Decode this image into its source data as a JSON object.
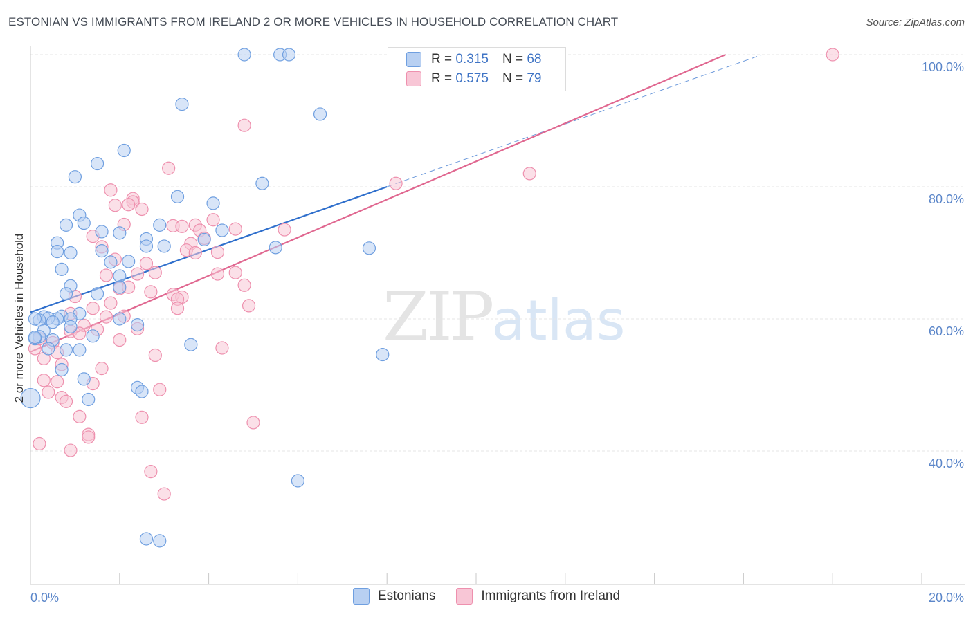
{
  "title": "ESTONIAN VS IMMIGRANTS FROM IRELAND 2 OR MORE VEHICLES IN HOUSEHOLD CORRELATION CHART",
  "source": "Source: ZipAtlas.com",
  "watermark": {
    "zip": "ZIP",
    "atlas": "atlas"
  },
  "legend_top": [
    {
      "r_label": "R =",
      "r_value": "0.315",
      "n_label": "N =",
      "n_value": "68"
    },
    {
      "r_label": "R =",
      "r_value": "0.575",
      "n_label": "N =",
      "n_value": "79"
    }
  ],
  "legend_bottom": [
    "Estonians",
    "Immigrants from Ireland"
  ],
  "colors": {
    "blue_fill": "#b8d0f2",
    "blue_stroke": "#6f9fe0",
    "blue_line": "#2f6fcc",
    "pink_fill": "#f8c6d6",
    "pink_stroke": "#ee90ae",
    "pink_line": "#e06790",
    "grid": "#e6e6e6",
    "tick_label": "#5b86c9"
  },
  "chart_data": {
    "type": "scatter",
    "title": "ESTONIAN VS IMMIGRANTS FROM IRELAND 2 OR MORE VEHICLES IN HOUSEHOLD CORRELATION CHART",
    "xlabel": "",
    "ylabel": "2 or more Vehicles in Household",
    "xlim": [
      0,
      20
    ],
    "ylim": [
      20,
      100
    ],
    "x_tick_labels": [
      "0.0%",
      "20.0%"
    ],
    "y_ticks": [
      40,
      60,
      80,
      100
    ],
    "y_tick_labels": [
      "40.0%",
      "60.0%",
      "80.0%",
      "100.0%"
    ],
    "grid": true,
    "legend_position": "top-center",
    "series": [
      {
        "name": "Estonians",
        "R": 0.315,
        "N": 68,
        "trend": {
          "x": [
            0.0,
            8.0
          ],
          "y": [
            61.0,
            80.0
          ],
          "dashed_extension_to_x": 16.4
        },
        "points": [
          [
            4.8,
            100
          ],
          [
            5.6,
            100
          ],
          [
            5.8,
            100
          ],
          [
            3.4,
            92.5
          ],
          [
            6.5,
            91
          ],
          [
            2.1,
            85.5
          ],
          [
            1.5,
            83.5
          ],
          [
            1.0,
            81.5
          ],
          [
            5.2,
            80.5
          ],
          [
            3.3,
            78.5
          ],
          [
            4.1,
            77.5
          ],
          [
            1.1,
            75.7
          ],
          [
            1.2,
            74.5
          ],
          [
            0.8,
            74.2
          ],
          [
            2.9,
            74.2
          ],
          [
            4.3,
            73.4
          ],
          [
            1.6,
            73.2
          ],
          [
            2.0,
            73.0
          ],
          [
            2.6,
            72.1
          ],
          [
            3.9,
            72.0
          ],
          [
            0.6,
            71.5
          ],
          [
            2.6,
            71.0
          ],
          [
            3.0,
            71.0
          ],
          [
            5.5,
            70.8
          ],
          [
            7.6,
            70.7
          ],
          [
            1.6,
            70.3
          ],
          [
            0.6,
            70.2
          ],
          [
            0.9,
            70.0
          ],
          [
            1.8,
            68.6
          ],
          [
            2.2,
            68.7
          ],
          [
            0.7,
            67.5
          ],
          [
            2.0,
            66.5
          ],
          [
            2.0,
            64.8
          ],
          [
            0.9,
            65.0
          ],
          [
            0.8,
            63.8
          ],
          [
            1.5,
            63.8
          ],
          [
            0.7,
            60.4
          ],
          [
            1.1,
            60.8
          ],
          [
            0.3,
            60.3
          ],
          [
            0.6,
            60.0
          ],
          [
            0.9,
            60.0
          ],
          [
            2.0,
            60.0
          ],
          [
            0.4,
            60.1
          ],
          [
            0.2,
            59.8
          ],
          [
            0.1,
            60.0
          ],
          [
            2.4,
            59.1
          ],
          [
            0.9,
            58.8
          ],
          [
            0.3,
            58.2
          ],
          [
            0.2,
            57.3
          ],
          [
            1.4,
            57.4
          ],
          [
            0.5,
            56.8
          ],
          [
            0.1,
            57.0
          ],
          [
            3.6,
            56.1
          ],
          [
            0.8,
            55.3
          ],
          [
            0.4,
            55.5
          ],
          [
            1.1,
            55.3
          ],
          [
            7.9,
            54.6
          ],
          [
            0.7,
            52.3
          ],
          [
            1.2,
            50.9
          ],
          [
            2.4,
            49.6
          ],
          [
            2.5,
            49.0
          ],
          [
            1.3,
            47.8
          ],
          [
            0.0,
            48.0
          ],
          [
            6.0,
            35.5
          ],
          [
            2.6,
            26.7
          ],
          [
            2.9,
            26.4
          ],
          [
            0.1,
            57.2
          ],
          [
            0.5,
            59.5
          ]
        ]
      },
      {
        "name": "Immigrants from Ireland",
        "R": 0.575,
        "N": 79,
        "trend": {
          "x": [
            0.0,
            15.6
          ],
          "y": [
            55.0,
            100.0
          ]
        },
        "points": [
          [
            18.0,
            100
          ],
          [
            4.8,
            89.3
          ],
          [
            3.1,
            82.8
          ],
          [
            11.2,
            82.0
          ],
          [
            8.2,
            80.5
          ],
          [
            1.8,
            79.5
          ],
          [
            2.3,
            78.2
          ],
          [
            2.3,
            77.7
          ],
          [
            2.2,
            77.3
          ],
          [
            1.9,
            77.2
          ],
          [
            2.5,
            76.6
          ],
          [
            4.1,
            75.0
          ],
          [
            2.1,
            74.3
          ],
          [
            3.2,
            74.1
          ],
          [
            3.7,
            74.2
          ],
          [
            3.4,
            74.0
          ],
          [
            4.6,
            73.6
          ],
          [
            3.8,
            73.4
          ],
          [
            5.7,
            73.5
          ],
          [
            1.4,
            72.5
          ],
          [
            3.9,
            72.2
          ],
          [
            3.6,
            71.4
          ],
          [
            1.6,
            70.9
          ],
          [
            3.5,
            70.4
          ],
          [
            3.7,
            70.0
          ],
          [
            4.2,
            70.1
          ],
          [
            1.9,
            69.0
          ],
          [
            2.6,
            68.4
          ],
          [
            4.6,
            67.0
          ],
          [
            2.8,
            67.0
          ],
          [
            1.7,
            66.6
          ],
          [
            2.4,
            66.8
          ],
          [
            4.2,
            66.8
          ],
          [
            4.8,
            65.1
          ],
          [
            2.0,
            64.6
          ],
          [
            2.7,
            64.1
          ],
          [
            3.2,
            63.7
          ],
          [
            3.4,
            63.3
          ],
          [
            1.0,
            63.4
          ],
          [
            3.3,
            63.0
          ],
          [
            1.8,
            62.4
          ],
          [
            4.9,
            62.0
          ],
          [
            3.3,
            61.6
          ],
          [
            1.4,
            61.6
          ],
          [
            0.9,
            60.8
          ],
          [
            1.7,
            60.3
          ],
          [
            2.1,
            60.4
          ],
          [
            1.2,
            59.0
          ],
          [
            2.4,
            58.5
          ],
          [
            0.9,
            58.1
          ],
          [
            1.1,
            57.8
          ],
          [
            2.0,
            56.8
          ],
          [
            4.3,
            55.6
          ],
          [
            2.8,
            54.5
          ],
          [
            0.3,
            54.0
          ],
          [
            1.6,
            52.5
          ],
          [
            0.7,
            53.1
          ],
          [
            1.4,
            50.2
          ],
          [
            0.3,
            50.7
          ],
          [
            0.6,
            50.5
          ],
          [
            2.9,
            49.3
          ],
          [
            0.4,
            48.9
          ],
          [
            0.7,
            48.1
          ],
          [
            0.8,
            47.5
          ],
          [
            1.1,
            45.2
          ],
          [
            2.5,
            45.1
          ],
          [
            5.0,
            44.3
          ],
          [
            1.3,
            42.5
          ],
          [
            1.3,
            42.1
          ],
          [
            0.2,
            41.1
          ],
          [
            0.9,
            40.1
          ],
          [
            2.7,
            36.9
          ],
          [
            3.0,
            33.5
          ],
          [
            0.1,
            55.5
          ],
          [
            0.2,
            57.0
          ],
          [
            0.5,
            56.4
          ],
          [
            0.6,
            54.9
          ],
          [
            2.2,
            64.8
          ],
          [
            1.5,
            58.4
          ]
        ]
      }
    ]
  }
}
